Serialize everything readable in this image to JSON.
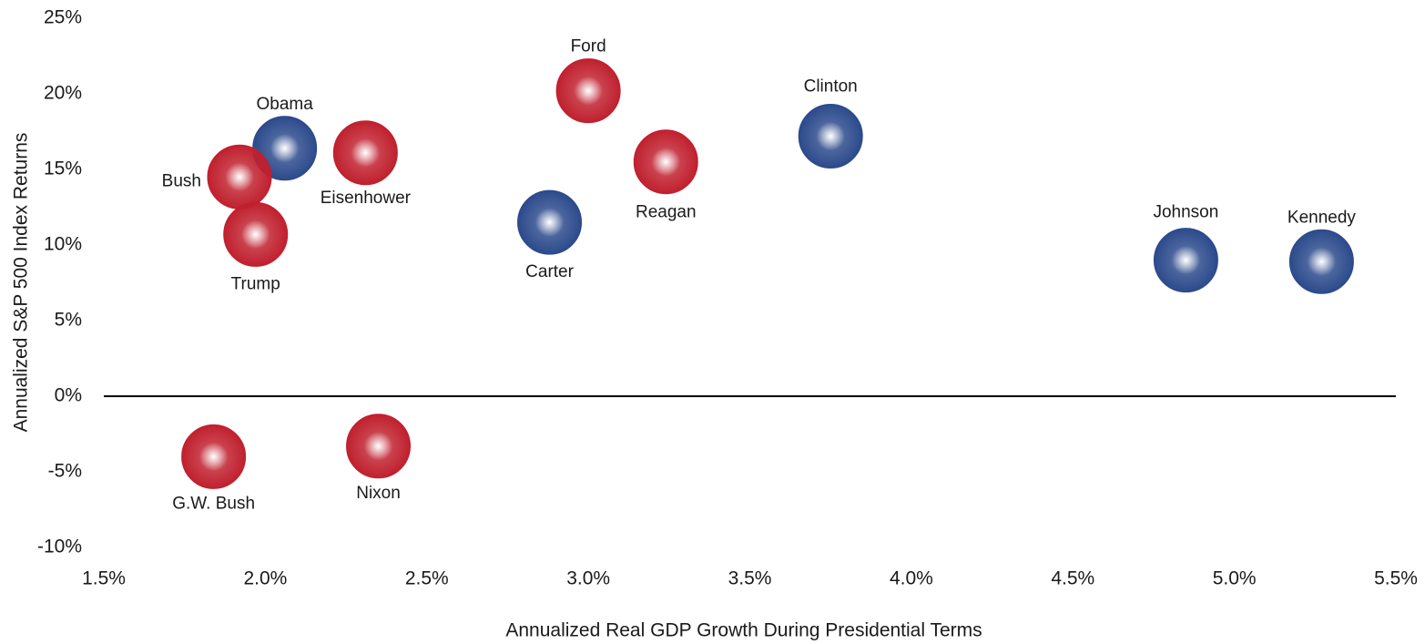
{
  "chart_data": {
    "type": "scatter",
    "x_label": "Annualized Real GDP Growth During Presidential Terms",
    "y_label": "Annualized S&P 500 Index Returns",
    "xlim": [
      1.5,
      5.5
    ],
    "xticks": [
      {
        "value": 1.5,
        "label": "1.5%"
      },
      {
        "value": 2.0,
        "label": "2.0%"
      },
      {
        "value": 2.5,
        "label": "2.5%"
      },
      {
        "value": 3.0,
        "label": "3.0%"
      },
      {
        "value": 3.5,
        "label": "3.5%"
      },
      {
        "value": 4.0,
        "label": "4.0%"
      },
      {
        "value": 4.5,
        "label": "4.5%"
      },
      {
        "value": 5.0,
        "label": "5.0%"
      },
      {
        "value": 5.5,
        "label": "5.5%"
      }
    ],
    "ylim": [
      -10,
      25
    ],
    "yticks": [
      {
        "value": 25,
        "label": "25%"
      },
      {
        "value": 20,
        "label": "20%"
      },
      {
        "value": 15,
        "label": "15%"
      },
      {
        "value": 10,
        "label": "10%"
      },
      {
        "value": 5,
        "label": "5%"
      },
      {
        "value": 0,
        "label": "0%"
      },
      {
        "value": -5,
        "label": "-5%"
      },
      {
        "value": -10,
        "label": "-10%"
      }
    ],
    "points": [
      {
        "label": "Ford",
        "x": 3.0,
        "y": 20.2,
        "color": "#c0202e"
      },
      {
        "label": "Clinton",
        "x": 3.75,
        "y": 17.2,
        "color": "#2c4a8c"
      },
      {
        "label": "Obama",
        "x": 2.06,
        "y": 16.4,
        "color": "#2c4a8c"
      },
      {
        "label": "Eisenhower",
        "x": 2.31,
        "y": 16.1,
        "color": "#c0202e"
      },
      {
        "label": "Reagan",
        "x": 3.24,
        "y": 15.5,
        "color": "#c0202e"
      },
      {
        "label": "Bush",
        "x": 1.92,
        "y": 14.5,
        "color": "#c0202e"
      },
      {
        "label": "Carter",
        "x": 2.88,
        "y": 11.5,
        "color": "#2c4a8c"
      },
      {
        "label": "Trump",
        "x": 1.97,
        "y": 10.7,
        "color": "#c0202e"
      },
      {
        "label": "Johnson",
        "x": 4.85,
        "y": 9.0,
        "color": "#2c4a8c"
      },
      {
        "label": "Kennedy",
        "x": 5.27,
        "y": 8.9,
        "color": "#2c4a8c"
      },
      {
        "label": "G.W. Bush",
        "x": 1.84,
        "y": -4.0,
        "color": "#c0202e"
      },
      {
        "label": "Nixon",
        "x": 2.35,
        "y": -3.3,
        "color": "#c0202e"
      }
    ]
  }
}
